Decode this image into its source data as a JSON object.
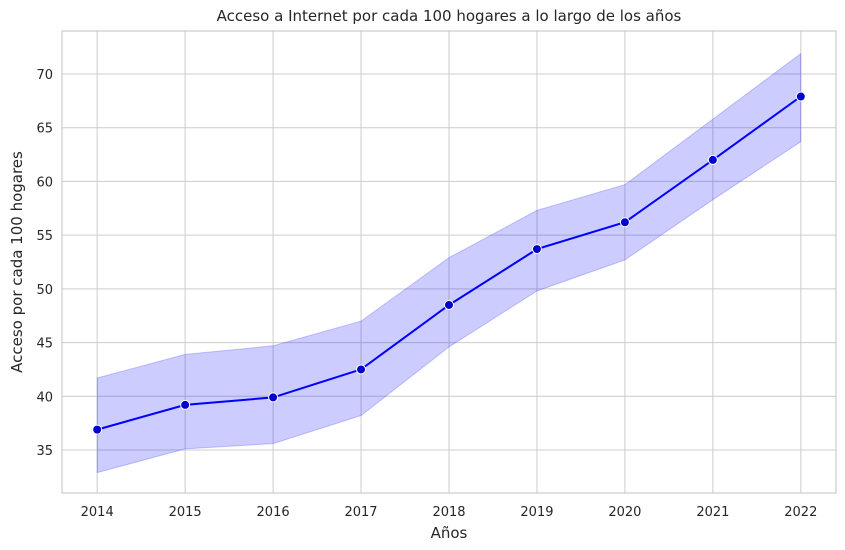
{
  "chart_data": {
    "type": "line",
    "title": "Acceso a Internet por cada 100 hogares a lo largo de los años",
    "xlabel": "Años",
    "ylabel": "Acceso por cada 100 hogares",
    "x": [
      2014,
      2015,
      2016,
      2017,
      2018,
      2019,
      2020,
      2021,
      2022
    ],
    "series": [
      {
        "values": [
          36.9,
          39.2,
          39.9,
          42.5,
          48.5,
          53.7,
          56.2,
          62.0,
          67.9
        ],
        "ci_lower": [
          32.9,
          35.1,
          35.6,
          38.2,
          44.6,
          49.8,
          52.7,
          58.3,
          63.7
        ],
        "ci_upper": [
          41.7,
          43.9,
          44.7,
          47.0,
          52.9,
          57.3,
          59.7,
          65.8,
          71.9
        ]
      }
    ],
    "xlim": [
      2013.6,
      2022.4
    ],
    "ylim": [
      31.0,
      74.0
    ],
    "yticks": [
      35,
      40,
      45,
      50,
      55,
      60,
      65,
      70
    ],
    "grid": true,
    "legend": "none",
    "colors": {
      "line": "#0000ff",
      "band": "#0000ff",
      "marker_fill": "#0000cc",
      "marker_edge": "#ffffff"
    }
  }
}
